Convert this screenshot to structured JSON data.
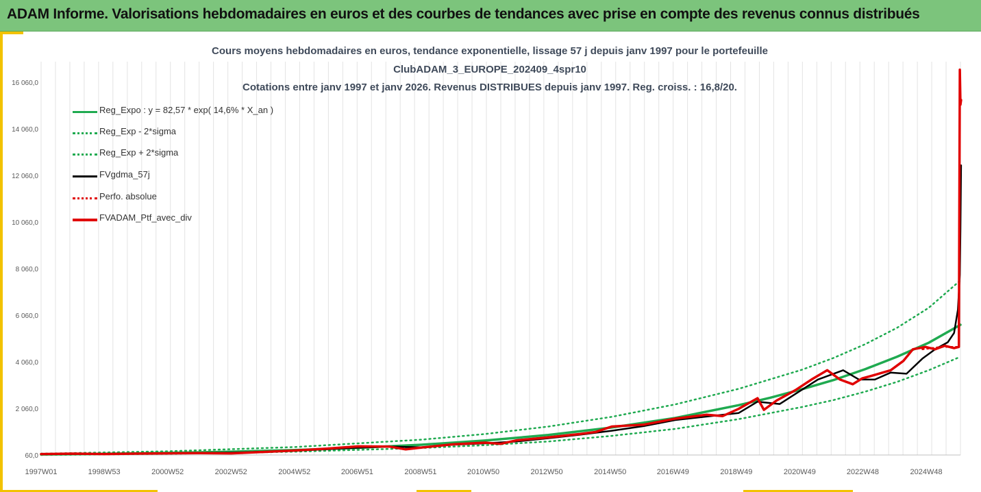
{
  "banner": {
    "title": "ADAM Informe. Valorisations hebdomadaires en euros et des courbes de tendances avec prise en compte des revenus connus distribués"
  },
  "colors": {
    "banner_bg": "#7cc47c",
    "accent": "#f2c200",
    "reg_expo": "#1faa50",
    "sigma": "#1faa50",
    "fvgdma": "#000000",
    "perfo": "#e00000",
    "fvadam": "#e00000"
  },
  "chart_data": {
    "type": "line",
    "title_lines": [
      "Cours moyens hebdomadaires  en euros, tendance exponentielle, lissage 57 j depuis janv 1997 pour le portefeuille",
      "ClubADAM_3_EUROPE_202409_4spr10",
      "Cotations entre janv 1997 et janv 2026. Revenus DISTRIBUES depuis janv 1997. Reg. croiss. : 16,8/20."
    ],
    "x_unit": "year",
    "x_range": [
      1997.0,
      2026.0
    ],
    "x_ticks": [
      {
        "x": 1997.0,
        "label": "1997W01"
      },
      {
        "x": 1998.99,
        "label": "1998W53"
      },
      {
        "x": 2000.99,
        "label": "2000W52"
      },
      {
        "x": 2002.99,
        "label": "2002W52"
      },
      {
        "x": 2004.99,
        "label": "2004W52"
      },
      {
        "x": 2006.97,
        "label": "2006W51"
      },
      {
        "x": 2008.97,
        "label": "2008W51"
      },
      {
        "x": 2010.95,
        "label": "2010W50"
      },
      {
        "x": 2012.95,
        "label": "2012W50"
      },
      {
        "x": 2014.95,
        "label": "2014W50"
      },
      {
        "x": 2016.93,
        "label": "2016W49"
      },
      {
        "x": 2018.93,
        "label": "2018W49"
      },
      {
        "x": 2020.93,
        "label": "2020W49"
      },
      {
        "x": 2022.92,
        "label": "2022W48"
      },
      {
        "x": 2024.92,
        "label": "2024W48"
      }
    ],
    "y_range": [
      60,
      16800
    ],
    "y_ticks": [
      {
        "y": 60,
        "label": "60,0"
      },
      {
        "y": 2060,
        "label": "2 060,0"
      },
      {
        "y": 4060,
        "label": "4 060,0"
      },
      {
        "y": 6060,
        "label": "6 060,0"
      },
      {
        "y": 8060,
        "label": "8 060,0"
      },
      {
        "y": 10060,
        "label": "10 060,0"
      },
      {
        "y": 12060,
        "label": "12 060,0"
      },
      {
        "y": 14060,
        "label": "14 060,0"
      },
      {
        "y": 16060,
        "label": "16 060,0"
      }
    ],
    "grid": "vertical",
    "legend_position": "top-left",
    "series": [
      {
        "name": "Reg_Expo : y = 82,57 * exp( 14,6% *  X_an )",
        "style": "solid",
        "color": "#1faa50",
        "width": 3.5,
        "points": [
          [
            1997,
            82
          ],
          [
            1999,
            110
          ],
          [
            2001,
            150
          ],
          [
            2003,
            205
          ],
          [
            2005,
            275
          ],
          [
            2007,
            370
          ],
          [
            2009,
            500
          ],
          [
            2011,
            680
          ],
          [
            2013,
            920
          ],
          [
            2015,
            1240
          ],
          [
            2017,
            1650
          ],
          [
            2019,
            2200
          ],
          [
            2020,
            2520
          ],
          [
            2021,
            2880
          ],
          [
            2022,
            3280
          ],
          [
            2023,
            3750
          ],
          [
            2024,
            4280
          ],
          [
            2025,
            4880
          ],
          [
            2026,
            5650
          ]
        ]
      },
      {
        "name": "Reg_Exp - 2*sigma",
        "style": "dotted",
        "color": "#1faa50",
        "width": 2.5,
        "points": [
          [
            1997,
            60
          ],
          [
            2001,
            110
          ],
          [
            2005,
            200
          ],
          [
            2009,
            360
          ],
          [
            2011,
            480
          ],
          [
            2013,
            640
          ],
          [
            2015,
            880
          ],
          [
            2017,
            1180
          ],
          [
            2019,
            1600
          ],
          [
            2021,
            2120
          ],
          [
            2022,
            2420
          ],
          [
            2023,
            2780
          ],
          [
            2024,
            3200
          ],
          [
            2025,
            3700
          ],
          [
            2026,
            4280
          ]
        ]
      },
      {
        "name": "Reg_Exp + 2*sigma",
        "style": "dotted",
        "color": "#1faa50",
        "width": 2.5,
        "points": [
          [
            1997,
            120
          ],
          [
            2001,
            220
          ],
          [
            2005,
            400
          ],
          [
            2009,
            720
          ],
          [
            2011,
            960
          ],
          [
            2013,
            1280
          ],
          [
            2015,
            1700
          ],
          [
            2017,
            2230
          ],
          [
            2019,
            2900
          ],
          [
            2021,
            3720
          ],
          [
            2022,
            4230
          ],
          [
            2023,
            4820
          ],
          [
            2024,
            5520
          ],
          [
            2025,
            6380
          ],
          [
            2026,
            7560
          ]
        ]
      },
      {
        "name": "FVgdma_57j",
        "style": "solid",
        "color": "#000000",
        "width": 2.5,
        "points": [
          [
            1997,
            100
          ],
          [
            1999,
            110
          ],
          [
            2001,
            140
          ],
          [
            2003,
            160
          ],
          [
            2005,
            240
          ],
          [
            2006.8,
            360
          ],
          [
            2008,
            420
          ],
          [
            2009,
            390
          ],
          [
            2010,
            500
          ],
          [
            2011,
            560
          ],
          [
            2012,
            640
          ],
          [
            2013,
            780
          ],
          [
            2014,
            930
          ],
          [
            2015,
            1100
          ],
          [
            2016,
            1300
          ],
          [
            2017,
            1560
          ],
          [
            2018,
            1710
          ],
          [
            2019,
            1860
          ],
          [
            2019.6,
            2350
          ],
          [
            2020.3,
            2250
          ],
          [
            2020.7,
            2600
          ],
          [
            2021.5,
            3300
          ],
          [
            2022.3,
            3700
          ],
          [
            2022.8,
            3300
          ],
          [
            2023.3,
            3300
          ],
          [
            2023.8,
            3600
          ],
          [
            2024.3,
            3550
          ],
          [
            2024.8,
            4200
          ],
          [
            2025.2,
            4600
          ],
          [
            2025.6,
            4900
          ],
          [
            2025.8,
            5300
          ],
          [
            2025.92,
            6300
          ],
          [
            2025.98,
            7800
          ],
          [
            2026.0,
            9800
          ],
          [
            2026.02,
            12500
          ]
        ]
      },
      {
        "name": "Perfo. absolue",
        "style": "dotted",
        "color": "#e00000",
        "width": 2.5,
        "points": [
          [
            2024.8,
            4600
          ],
          [
            2025.4,
            4700
          ],
          [
            2025.9,
            4700
          ]
        ]
      },
      {
        "name": "FVADAM_Ptf_avec_div",
        "style": "solid",
        "color": "#e00000",
        "width": 3.5,
        "points": [
          [
            1997,
            100
          ],
          [
            1998,
            120
          ],
          [
            1999,
            100
          ],
          [
            2000,
            120
          ],
          [
            2001,
            130
          ],
          [
            2002,
            140
          ],
          [
            2003,
            130
          ],
          [
            2004,
            190
          ],
          [
            2005,
            250
          ],
          [
            2006,
            330
          ],
          [
            2007,
            430
          ],
          [
            2008,
            420
          ],
          [
            2008.5,
            300
          ],
          [
            2009,
            380
          ],
          [
            2010,
            520
          ],
          [
            2011,
            590
          ],
          [
            2011.5,
            540
          ],
          [
            2012,
            690
          ],
          [
            2013,
            820
          ],
          [
            2014,
            960
          ],
          [
            2014.5,
            1050
          ],
          [
            2015,
            1280
          ],
          [
            2016,
            1360
          ],
          [
            2017,
            1620
          ],
          [
            2018,
            1790
          ],
          [
            2018.5,
            1730
          ],
          [
            2019,
            2040
          ],
          [
            2019.6,
            2500
          ],
          [
            2019.8,
            2000
          ],
          [
            2020.2,
            2400
          ],
          [
            2020.8,
            2850
          ],
          [
            2021.3,
            3300
          ],
          [
            2021.8,
            3700
          ],
          [
            2022.2,
            3300
          ],
          [
            2022.6,
            3100
          ],
          [
            2022.9,
            3350
          ],
          [
            2023.3,
            3500
          ],
          [
            2023.8,
            3700
          ],
          [
            2024.2,
            4100
          ],
          [
            2024.5,
            4600
          ],
          [
            2024.9,
            4700
          ],
          [
            2025.2,
            4600
          ],
          [
            2025.5,
            4750
          ],
          [
            2025.8,
            4650
          ],
          [
            2025.95,
            4700
          ],
          [
            2025.98,
            16600
          ],
          [
            2026.0,
            15100
          ],
          [
            2026.02,
            15300
          ]
        ]
      }
    ]
  }
}
